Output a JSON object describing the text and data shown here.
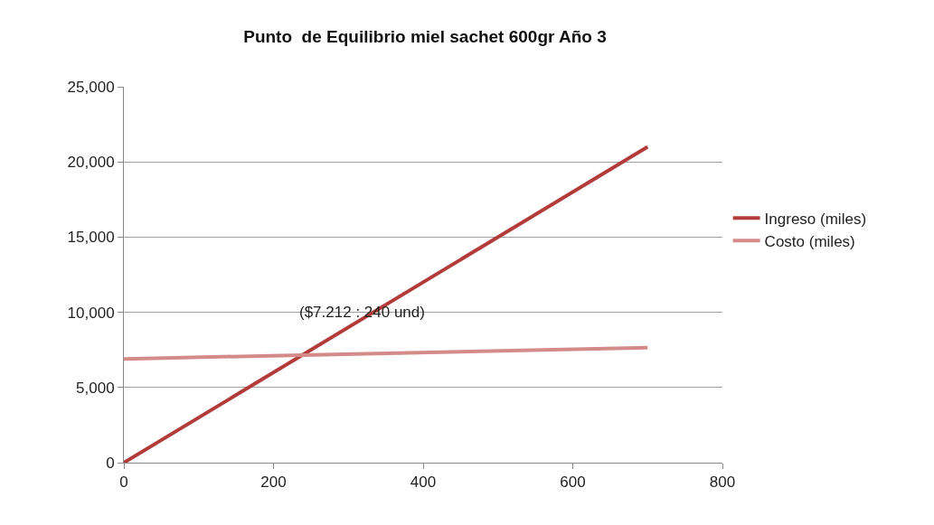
{
  "chart_data": {
    "type": "line",
    "title": "Punto  de Equilibrio miel sachet 600gr Año 3",
    "x": [
      0,
      700
    ],
    "series": [
      {
        "name": "Ingreso (miles)",
        "color": "#b23c3a",
        "values": [
          0,
          21000
        ]
      },
      {
        "name": "Costo (miles)",
        "color": "#d48a88",
        "values": [
          6900,
          7650
        ]
      }
    ],
    "xlim": [
      0,
      800
    ],
    "xticks": [
      0,
      200,
      400,
      600,
      800
    ],
    "ylim": [
      0,
      25000
    ],
    "yticks": [
      {
        "value": 0,
        "label": "0"
      },
      {
        "value": 5000,
        "label": "5,000"
      },
      {
        "value": 10000,
        "label": "10,000"
      },
      {
        "value": 15000,
        "label": "15,000"
      },
      {
        "value": 20000,
        "label": "20,000"
      },
      {
        "value": 25000,
        "label": "25,000"
      }
    ],
    "grid": "y",
    "legend": "right",
    "marker": "none",
    "line_style": "solid",
    "annotations": [
      "($7.212 : 240 und)"
    ]
  }
}
